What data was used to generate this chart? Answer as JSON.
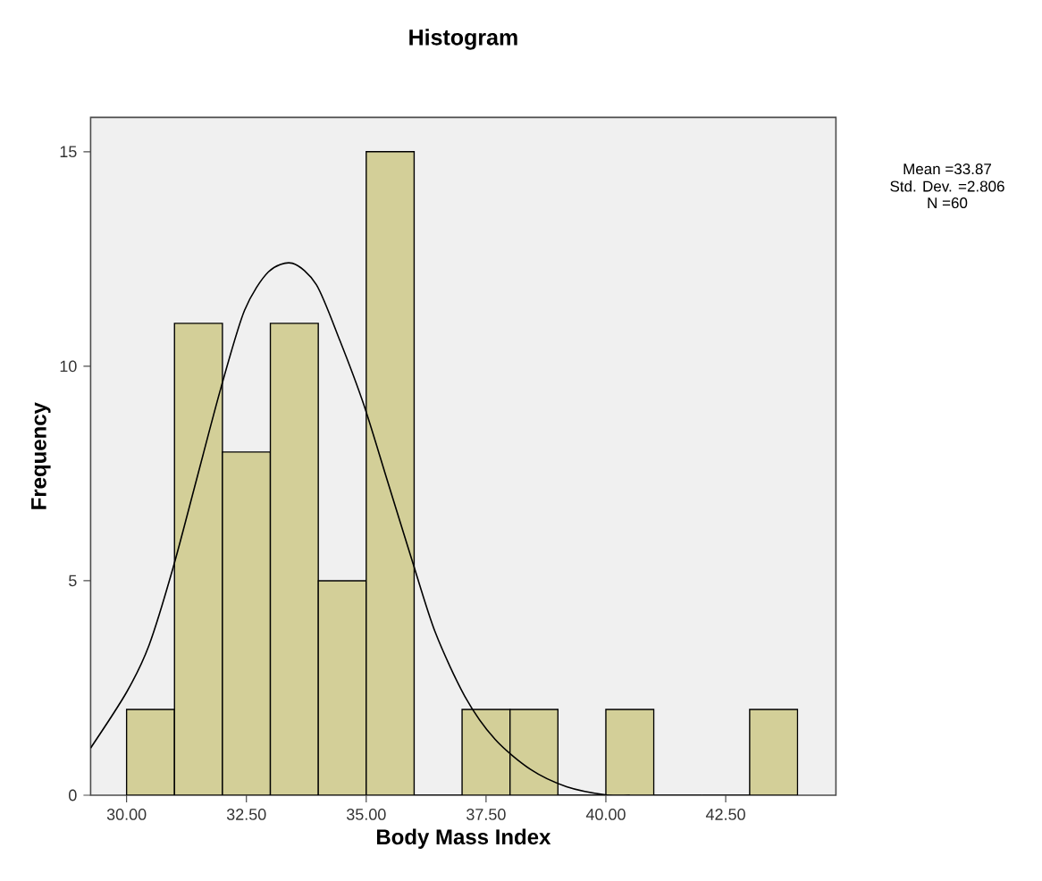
{
  "chart_data": {
    "type": "histogram",
    "title": "Histogram",
    "xlabel": "Body Mass Index",
    "ylabel": "Frequency",
    "annotations": [
      "Mean =33.87",
      "Std. Dev. =2.806",
      "N =60"
    ],
    "series": [
      {
        "bins": [
          30,
          31,
          32,
          33,
          34,
          35,
          36,
          37,
          38,
          39,
          40,
          41,
          42,
          43,
          44
        ],
        "values": [
          2,
          11,
          8,
          11,
          5,
          15,
          0,
          2,
          2,
          0,
          2,
          0,
          0,
          2
        ],
        "color": "#d3cf98"
      },
      {
        "type": "line",
        "x": [
          29.25,
          30.0,
          30.47,
          30.97,
          31.47,
          31.97,
          32.46,
          32.96,
          33.46,
          33.96,
          34.45,
          34.95,
          35.45,
          35.95,
          36.44,
          37.06,
          37.69,
          38.43,
          39.18,
          40.05,
          40.5
        ],
        "values": [
          1.1,
          2.4,
          3.5,
          5.3,
          7.4,
          9.5,
          11.3,
          12.2,
          12.4,
          11.9,
          10.6,
          9.1,
          7.3,
          5.5,
          3.8,
          2.3,
          1.3,
          0.6,
          0.2,
          0,
          0
        ],
        "color": "#000000"
      }
    ],
    "xlim": [
      29.25,
      44.8
    ],
    "ylim": [
      0,
      15.8
    ],
    "xticks": [
      {
        "value": 30,
        "label": "30.00"
      },
      {
        "value": 32.5,
        "label": "32.50"
      },
      {
        "value": 35,
        "label": "35.00"
      },
      {
        "value": 37.5,
        "label": "37.50"
      },
      {
        "value": 40,
        "label": "40.00"
      },
      {
        "value": 42.5,
        "label": "42.50"
      }
    ],
    "yticks": [
      0,
      5,
      10,
      15
    ],
    "grid": false
  }
}
